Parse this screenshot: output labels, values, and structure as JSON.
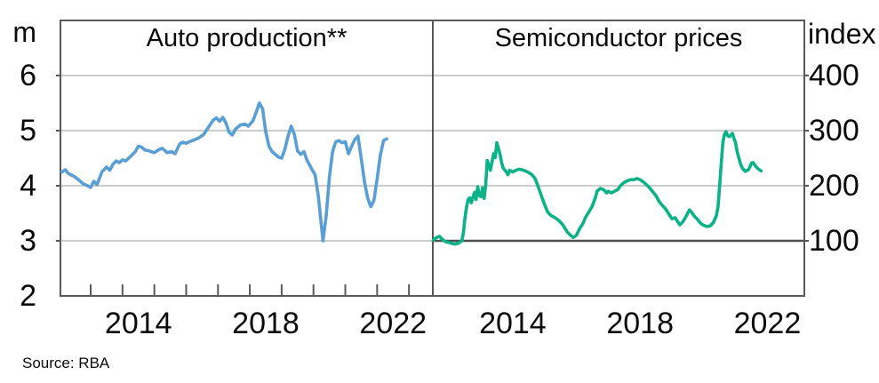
{
  "figure": {
    "source_note": "Source: RBA",
    "colors": {
      "axis": "#595959",
      "grid": "#bcbcbc",
      "grid_dark": "#4f4f4f",
      "text": "#0a0a0a",
      "background": "#ffffff"
    }
  },
  "chart_data": [
    {
      "type": "line",
      "panel": "left",
      "title": "Auto production**",
      "unit_label": "m",
      "y_axis_side": "left",
      "ylim": [
        2,
        7
      ],
      "yticks": [
        6,
        5,
        4,
        3,
        2
      ],
      "xlim": [
        2012.05,
        2023.75
      ],
      "x_year_labels": [
        2014,
        2018,
        2022
      ],
      "x_minor_tick_years": [
        2013,
        2014,
        2015,
        2016,
        2017,
        2018,
        2019,
        2020,
        2021,
        2022,
        2023
      ],
      "grid": true,
      "line_color": "#5a9fd4",
      "points": [
        [
          2012.1,
          4.25
        ],
        [
          2012.2,
          4.29
        ],
        [
          2012.3,
          4.22
        ],
        [
          2012.45,
          4.18
        ],
        [
          2012.6,
          4.12
        ],
        [
          2012.75,
          4.04
        ],
        [
          2012.9,
          4.0
        ],
        [
          2013.0,
          3.97
        ],
        [
          2013.1,
          4.08
        ],
        [
          2013.2,
          4.02
        ],
        [
          2013.35,
          4.25
        ],
        [
          2013.5,
          4.34
        ],
        [
          2013.6,
          4.28
        ],
        [
          2013.7,
          4.39
        ],
        [
          2013.8,
          4.45
        ],
        [
          2013.9,
          4.42
        ],
        [
          2014.0,
          4.47
        ],
        [
          2014.1,
          4.45
        ],
        [
          2014.25,
          4.53
        ],
        [
          2014.4,
          4.62
        ],
        [
          2014.5,
          4.72
        ],
        [
          2014.6,
          4.7
        ],
        [
          2014.7,
          4.65
        ],
        [
          2014.85,
          4.63
        ],
        [
          2015.0,
          4.6
        ],
        [
          2015.1,
          4.64
        ],
        [
          2015.25,
          4.68
        ],
        [
          2015.4,
          4.6
        ],
        [
          2015.55,
          4.62
        ],
        [
          2015.65,
          4.58
        ],
        [
          2015.8,
          4.76
        ],
        [
          2015.9,
          4.79
        ],
        [
          2016.0,
          4.77
        ],
        [
          2016.1,
          4.8
        ],
        [
          2016.25,
          4.83
        ],
        [
          2016.4,
          4.87
        ],
        [
          2016.55,
          4.93
        ],
        [
          2016.7,
          5.06
        ],
        [
          2016.85,
          5.19
        ],
        [
          2016.95,
          5.23
        ],
        [
          2017.05,
          5.17
        ],
        [
          2017.15,
          5.24
        ],
        [
          2017.25,
          5.14
        ],
        [
          2017.35,
          4.97
        ],
        [
          2017.45,
          4.92
        ],
        [
          2017.55,
          5.03
        ],
        [
          2017.7,
          5.1
        ],
        [
          2017.85,
          5.12
        ],
        [
          2017.95,
          5.08
        ],
        [
          2018.1,
          5.18
        ],
        [
          2018.2,
          5.33
        ],
        [
          2018.3,
          5.5
        ],
        [
          2018.4,
          5.4
        ],
        [
          2018.5,
          4.98
        ],
        [
          2018.6,
          4.72
        ],
        [
          2018.7,
          4.62
        ],
        [
          2018.8,
          4.57
        ],
        [
          2018.9,
          4.52
        ],
        [
          2019.0,
          4.5
        ],
        [
          2019.1,
          4.66
        ],
        [
          2019.2,
          4.9
        ],
        [
          2019.3,
          5.08
        ],
        [
          2019.4,
          4.93
        ],
        [
          2019.5,
          4.63
        ],
        [
          2019.6,
          4.57
        ],
        [
          2019.7,
          4.62
        ],
        [
          2019.8,
          4.46
        ],
        [
          2019.95,
          4.3
        ],
        [
          2020.05,
          4.2
        ],
        [
          2020.15,
          3.82
        ],
        [
          2020.3,
          3.0
        ],
        [
          2020.4,
          3.45
        ],
        [
          2020.5,
          4.15
        ],
        [
          2020.6,
          4.62
        ],
        [
          2020.7,
          4.8
        ],
        [
          2020.8,
          4.82
        ],
        [
          2020.9,
          4.78
        ],
        [
          2021.0,
          4.8
        ],
        [
          2021.1,
          4.58
        ],
        [
          2021.2,
          4.72
        ],
        [
          2021.3,
          4.84
        ],
        [
          2021.4,
          4.9
        ],
        [
          2021.5,
          4.5
        ],
        [
          2021.6,
          4.08
        ],
        [
          2021.7,
          3.78
        ],
        [
          2021.8,
          3.62
        ],
        [
          2021.9,
          3.73
        ],
        [
          2022.0,
          4.12
        ],
        [
          2022.1,
          4.55
        ],
        [
          2022.2,
          4.82
        ],
        [
          2022.3,
          4.85
        ]
      ]
    },
    {
      "type": "line",
      "panel": "right",
      "title": "Semiconductor prices",
      "unit_label": "index",
      "y_axis_side": "right",
      "ylim": [
        0,
        500
      ],
      "yticks": [
        400,
        300,
        200,
        100
      ],
      "baseline": 100,
      "xlim": [
        2011.99,
        2023.66
      ],
      "x_year_labels": [
        2014,
        2018,
        2022
      ],
      "x_minor_tick_years": [],
      "grid": true,
      "line_color": "#0cb287",
      "points": [
        [
          2012.0,
          101
        ],
        [
          2012.1,
          106
        ],
        [
          2012.2,
          108
        ],
        [
          2012.3,
          102
        ],
        [
          2012.4,
          98
        ],
        [
          2012.5,
          97
        ],
        [
          2012.6,
          95
        ],
        [
          2012.7,
          94
        ],
        [
          2012.8,
          96
        ],
        [
          2012.9,
          100
        ],
        [
          2012.95,
          114
        ],
        [
          2013.0,
          142
        ],
        [
          2013.05,
          162
        ],
        [
          2013.1,
          175
        ],
        [
          2013.15,
          178
        ],
        [
          2013.2,
          169
        ],
        [
          2013.3,
          188
        ],
        [
          2013.35,
          175
        ],
        [
          2013.4,
          198
        ],
        [
          2013.45,
          182
        ],
        [
          2013.5,
          180
        ],
        [
          2013.55,
          196
        ],
        [
          2013.6,
          177
        ],
        [
          2013.65,
          202
        ],
        [
          2013.7,
          246
        ],
        [
          2013.75,
          238
        ],
        [
          2013.8,
          228
        ],
        [
          2013.85,
          243
        ],
        [
          2013.9,
          258
        ],
        [
          2013.95,
          251
        ],
        [
          2014.0,
          278
        ],
        [
          2014.05,
          268
        ],
        [
          2014.1,
          257
        ],
        [
          2014.15,
          242
        ],
        [
          2014.2,
          232
        ],
        [
          2014.3,
          225
        ],
        [
          2014.35,
          220
        ],
        [
          2014.4,
          228
        ],
        [
          2014.5,
          225
        ],
        [
          2014.6,
          228
        ],
        [
          2014.7,
          230
        ],
        [
          2014.85,
          228
        ],
        [
          2015.0,
          224
        ],
        [
          2015.1,
          220
        ],
        [
          2015.2,
          213
        ],
        [
          2015.3,
          198
        ],
        [
          2015.4,
          182
        ],
        [
          2015.5,
          166
        ],
        [
          2015.6,
          152
        ],
        [
          2015.7,
          146
        ],
        [
          2015.8,
          143
        ],
        [
          2015.9,
          139
        ],
        [
          2016.0,
          134
        ],
        [
          2016.1,
          127
        ],
        [
          2016.2,
          117
        ],
        [
          2016.3,
          111
        ],
        [
          2016.4,
          106
        ],
        [
          2016.5,
          110
        ],
        [
          2016.6,
          122
        ],
        [
          2016.7,
          131
        ],
        [
          2016.8,
          144
        ],
        [
          2016.9,
          153
        ],
        [
          2017.0,
          163
        ],
        [
          2017.1,
          179
        ],
        [
          2017.15,
          190
        ],
        [
          2017.25,
          195
        ],
        [
          2017.35,
          193
        ],
        [
          2017.45,
          187
        ],
        [
          2017.5,
          190
        ],
        [
          2017.6,
          187
        ],
        [
          2017.7,
          190
        ],
        [
          2017.8,
          193
        ],
        [
          2017.9,
          201
        ],
        [
          2018.0,
          206
        ],
        [
          2018.1,
          209
        ],
        [
          2018.2,
          211
        ],
        [
          2018.3,
          211
        ],
        [
          2018.4,
          213
        ],
        [
          2018.5,
          211
        ],
        [
          2018.6,
          207
        ],
        [
          2018.7,
          202
        ],
        [
          2018.8,
          196
        ],
        [
          2018.9,
          189
        ],
        [
          2019.0,
          182
        ],
        [
          2019.1,
          171
        ],
        [
          2019.2,
          164
        ],
        [
          2019.3,
          158
        ],
        [
          2019.4,
          149
        ],
        [
          2019.5,
          140
        ],
        [
          2019.6,
          142
        ],
        [
          2019.7,
          133
        ],
        [
          2019.75,
          129
        ],
        [
          2019.85,
          135
        ],
        [
          2019.95,
          145
        ],
        [
          2020.05,
          156
        ],
        [
          2020.1,
          153
        ],
        [
          2020.2,
          145
        ],
        [
          2020.3,
          139
        ],
        [
          2020.4,
          132
        ],
        [
          2020.5,
          128
        ],
        [
          2020.6,
          126
        ],
        [
          2020.7,
          127
        ],
        [
          2020.8,
          133
        ],
        [
          2020.9,
          146
        ],
        [
          2020.95,
          162
        ],
        [
          2021.0,
          200
        ],
        [
          2021.05,
          240
        ],
        [
          2021.1,
          278
        ],
        [
          2021.15,
          293
        ],
        [
          2021.2,
          298
        ],
        [
          2021.25,
          291
        ],
        [
          2021.3,
          289
        ],
        [
          2021.35,
          292
        ],
        [
          2021.4,
          295
        ],
        [
          2021.45,
          286
        ],
        [
          2021.5,
          278
        ],
        [
          2021.55,
          262
        ],
        [
          2021.6,
          251
        ],
        [
          2021.65,
          241
        ],
        [
          2021.7,
          233
        ],
        [
          2021.8,
          226
        ],
        [
          2021.9,
          229
        ],
        [
          2021.95,
          234
        ],
        [
          2022.0,
          241
        ],
        [
          2022.05,
          242
        ],
        [
          2022.1,
          238
        ],
        [
          2022.15,
          234
        ],
        [
          2022.2,
          231
        ],
        [
          2022.3,
          227
        ]
      ]
    }
  ]
}
